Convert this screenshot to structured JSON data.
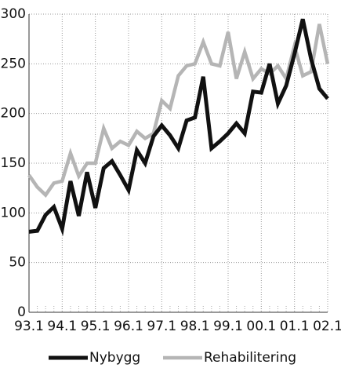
{
  "chart_data": {
    "type": "line",
    "categories": [
      "93.1",
      null,
      null,
      null,
      "94.1",
      null,
      null,
      null,
      "95.1",
      null,
      null,
      null,
      "96.1",
      null,
      null,
      null,
      "97.1",
      null,
      null,
      null,
      "98.1",
      null,
      null,
      null,
      "99.1",
      null,
      null,
      null,
      "00.1",
      null,
      null,
      null,
      "01.1",
      null,
      null,
      null,
      "02.1"
    ],
    "series": [
      {
        "name": "Nybygg",
        "color": "#111111",
        "values": [
          81,
          82,
          98,
          106,
          84,
          132,
          97,
          141,
          105,
          145,
          152,
          138,
          123,
          163,
          150,
          177,
          188,
          178,
          165,
          193,
          196,
          237,
          165,
          172,
          180,
          190,
          180,
          222,
          221,
          250,
          210,
          228,
          260,
          295,
          255,
          225,
          215
        ]
      },
      {
        "name": "Rehabilitering",
        "color": "#b5b5b5",
        "values": [
          138,
          126,
          118,
          130,
          132,
          160,
          137,
          150,
          150,
          185,
          165,
          172,
          168,
          182,
          175,
          180,
          213,
          205,
          238,
          248,
          250,
          272,
          250,
          248,
          282,
          235,
          262,
          235,
          245,
          240,
          248,
          235,
          268,
          238,
          242,
          290,
          250
        ]
      }
    ],
    "ylim": [
      0,
      300
    ],
    "yticks": [
      0,
      50,
      100,
      150,
      200,
      250,
      300
    ],
    "grid": true
  }
}
